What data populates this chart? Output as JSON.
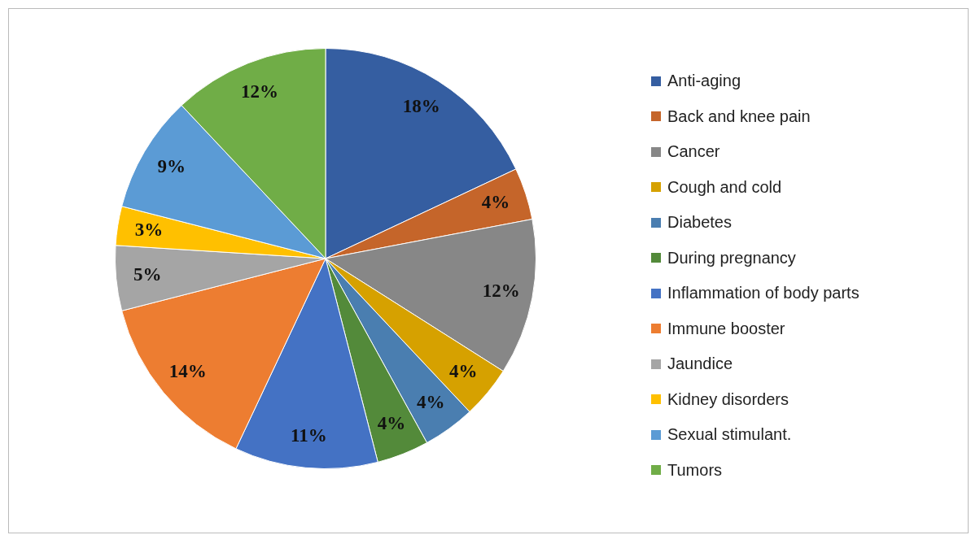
{
  "chart_data": {
    "type": "pie",
    "legend": "right",
    "categories": [
      "Anti-aging",
      "Back and knee pain",
      "Cancer",
      "Cough and cold",
      "Diabetes",
      "During pregnancy",
      "Inflammation of body parts",
      "Immune booster",
      "Jaundice",
      "Kidney disorders",
      "Sexual stimulant.",
      "Tumors"
    ],
    "values": [
      18,
      4,
      12,
      4,
      4,
      4,
      11,
      14,
      5,
      3,
      9,
      12
    ],
    "value_labels": [
      "18%",
      "4%",
      "12%",
      "4%",
      "4%",
      "4%",
      "11%",
      "14%",
      "5%",
      "3%",
      "9%",
      "12%"
    ],
    "colors": [
      "#355ea1",
      "#c5652a",
      "#878787",
      "#d6a100",
      "#4a7eb0",
      "#538a3a",
      "#4472c4",
      "#ed7d31",
      "#a5a5a5",
      "#ffc000",
      "#5b9bd5",
      "#70ad47"
    ]
  }
}
